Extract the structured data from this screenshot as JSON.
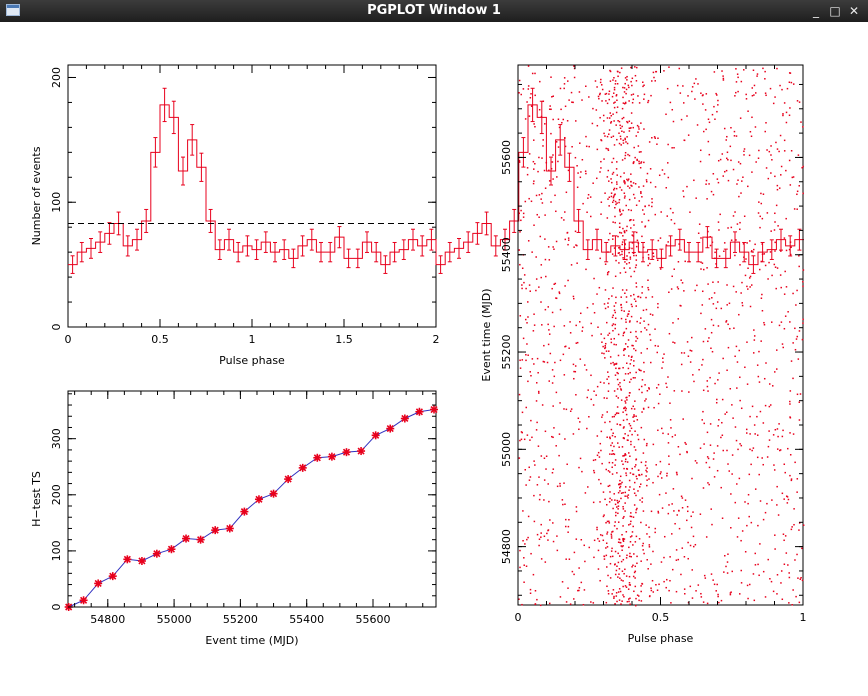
{
  "window": {
    "title": "PGPLOT Window 1",
    "icon": "window-app-icon",
    "controls": {
      "minimize": "_",
      "maximize": "□",
      "close": "✕"
    }
  },
  "colors": {
    "data": "#e8001c",
    "axes": "#000000",
    "background": "#ffffff"
  },
  "chart_data": [
    {
      "type": "histogram",
      "xlabel": "Pulse phase",
      "ylabel": "Number of events",
      "xlim": [
        0,
        2
      ],
      "ylim": [
        0,
        210
      ],
      "xticks": [
        "0",
        "0.5",
        "1",
        "1.5",
        "2"
      ],
      "yticks": [
        "0",
        "100",
        "200"
      ],
      "bin_width": 0.05,
      "x_start": 0,
      "values": [
        50,
        60,
        63,
        68,
        75,
        83,
        65,
        70,
        85,
        140,
        178,
        168,
        125,
        150,
        128,
        85,
        62,
        70,
        60,
        65,
        62,
        68,
        60,
        62,
        55,
        65,
        70,
        60,
        60,
        72,
        55,
        55,
        68,
        60,
        50,
        60,
        62,
        70,
        65,
        70,
        50,
        60,
        63,
        68,
        75,
        83,
        65,
        70,
        85,
        140,
        178,
        168,
        125,
        150,
        128,
        85,
        62,
        70,
        60,
        65,
        62,
        68,
        60,
        62,
        55,
        65,
        70,
        60,
        60,
        72,
        55,
        55,
        68,
        60,
        50,
        60,
        62,
        70,
        65,
        70
      ],
      "mean_line": 83
    },
    {
      "type": "line",
      "xlabel": "Event time (MJD)",
      "ylabel": "H−test TS",
      "xlim": [
        54680,
        55790
      ],
      "ylim": [
        0,
        385
      ],
      "xticks": [
        "54800",
        "55000",
        "55200",
        "55400",
        "55600"
      ],
      "yticks": [
        "0",
        "100",
        "200",
        "300"
      ],
      "x": [
        54682,
        54727,
        54771,
        54815,
        54859,
        54903,
        54948,
        54992,
        55036,
        55080,
        55124,
        55168,
        55212,
        55256,
        55300,
        55344,
        55388,
        55432,
        55476,
        55520,
        55564,
        55608,
        55652,
        55696,
        55740,
        55784
      ],
      "y": [
        0,
        12,
        42,
        55,
        85,
        82,
        95,
        103,
        122,
        120,
        137,
        140,
        170,
        192,
        202,
        228,
        248,
        266,
        268,
        276,
        278,
        306,
        318,
        336,
        348,
        352
      ]
    },
    {
      "type": "scatter",
      "xlabel": "Pulse phase",
      "ylabel": "Event time (MJD)",
      "xlim": [
        0,
        1
      ],
      "ylim": [
        54680,
        55790
      ],
      "xticks": [
        "0",
        "0.5",
        "1"
      ],
      "yticks": [
        "54800",
        "55000",
        "55200",
        "55400",
        "55600"
      ],
      "n_points": 2200,
      "pulse_center_phase": 0.37,
      "pulse_width": 0.05
    }
  ]
}
